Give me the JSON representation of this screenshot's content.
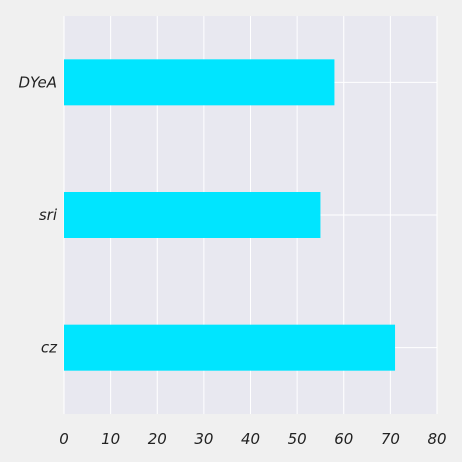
{
  "chart_data": {
    "type": "bar",
    "orientation": "horizontal",
    "categories": [
      "DYeA",
      "sri",
      "cz"
    ],
    "values": [
      58,
      55,
      71
    ],
    "xlim": [
      0,
      80
    ],
    "xticks": [
      0,
      10,
      20,
      30,
      40,
      50,
      60,
      70,
      80
    ],
    "grid": true,
    "legend": "none",
    "title": "",
    "xlabel": "",
    "ylabel": ""
  },
  "colors": {
    "bar": "#00e5ff",
    "plot_background": "#e8e8f0",
    "page_background": "#f0f0f0",
    "grid": "#ffffff"
  }
}
